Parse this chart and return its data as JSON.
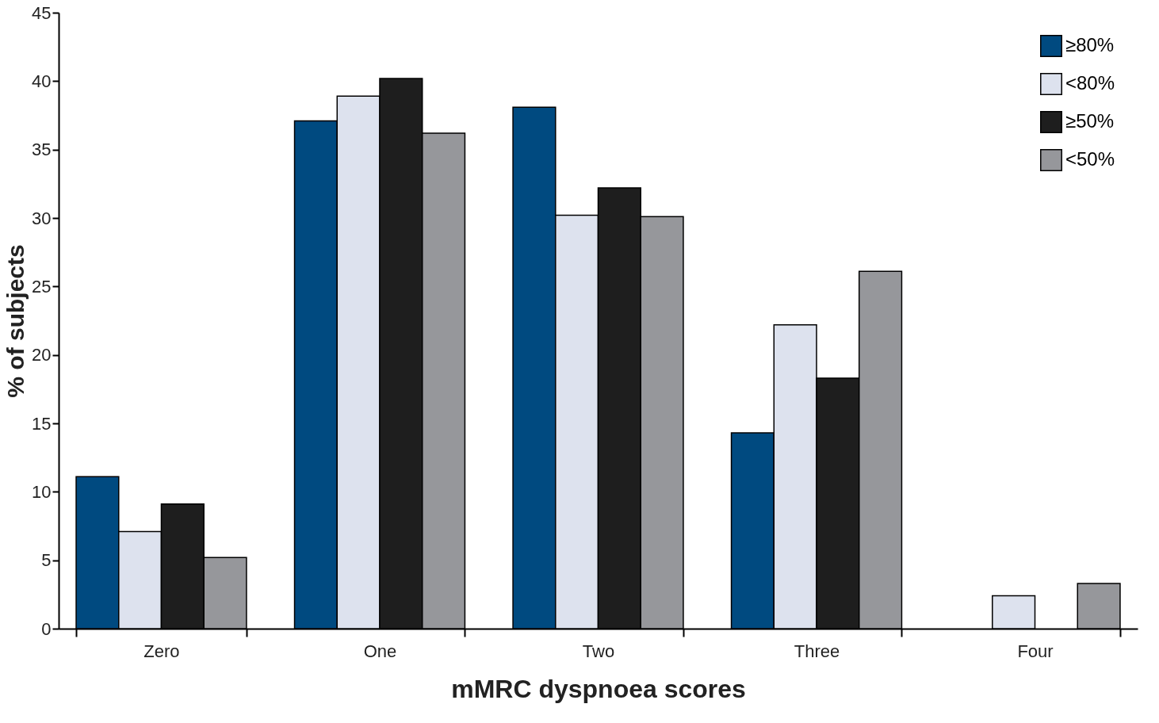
{
  "chart_data": {
    "type": "bar",
    "xlabel": "mMRC dyspnoea scores",
    "ylabel": "% of subjects",
    "categories": [
      "Zero",
      "One",
      "Two",
      "Three",
      "Four"
    ],
    "series": [
      {
        "name": "≥80%",
        "color": "#004a80",
        "values": [
          11.1,
          37.1,
          38.1,
          14.3,
          null
        ]
      },
      {
        "name": "<80%",
        "color": "#dde2ee",
        "values": [
          7.1,
          38.9,
          30.2,
          22.2,
          2.4
        ]
      },
      {
        "name": "≥50%",
        "color": "#1e1e1e",
        "values": [
          9.1,
          40.2,
          32.2,
          18.3,
          null
        ]
      },
      {
        "name": "<50%",
        "color": "#96979b",
        "values": [
          5.2,
          36.2,
          30.1,
          26.1,
          3.3
        ]
      }
    ],
    "ylim": [
      0,
      45
    ],
    "yticks": [
      0,
      5,
      10,
      15,
      20,
      25,
      30,
      35,
      40,
      45
    ],
    "grid": false,
    "legend": "top right"
  }
}
